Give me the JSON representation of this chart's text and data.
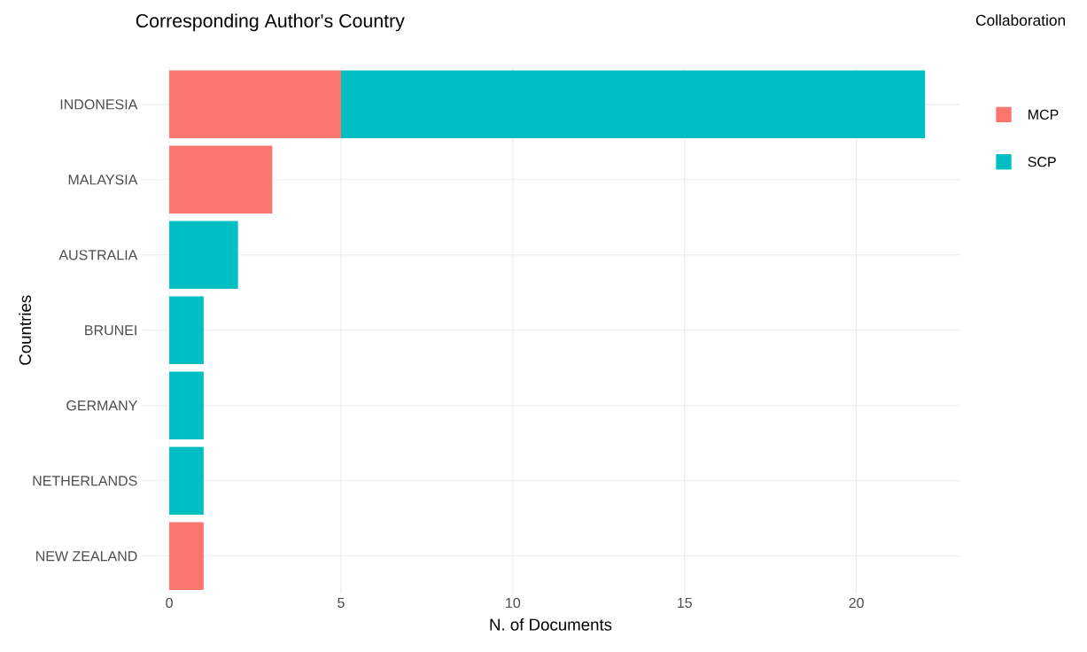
{
  "chart_data": {
    "type": "bar",
    "orientation": "horizontal",
    "stacked": true,
    "title": "Corresponding Author's Country",
    "xlabel": "N. of Documents",
    "ylabel": "Countries",
    "legend_title": "Collaboration",
    "legend": "top right",
    "grid": true,
    "categories": [
      "INDONESIA",
      "MALAYSIA",
      "AUSTRALIA",
      "BRUNEI",
      "GERMANY",
      "NETHERLANDS",
      "NEW ZEALAND"
    ],
    "series": [
      {
        "name": "MCP",
        "color": "#f8766d",
        "values": [
          5,
          3,
          null,
          null,
          null,
          null,
          1
        ]
      },
      {
        "name": "SCP",
        "color": "#00bfc4",
        "values": [
          17,
          null,
          2,
          1,
          1,
          1,
          null
        ]
      }
    ],
    "xlim": [
      -0.8,
      23
    ],
    "xticks": [
      0,
      5,
      10,
      15,
      20
    ]
  }
}
